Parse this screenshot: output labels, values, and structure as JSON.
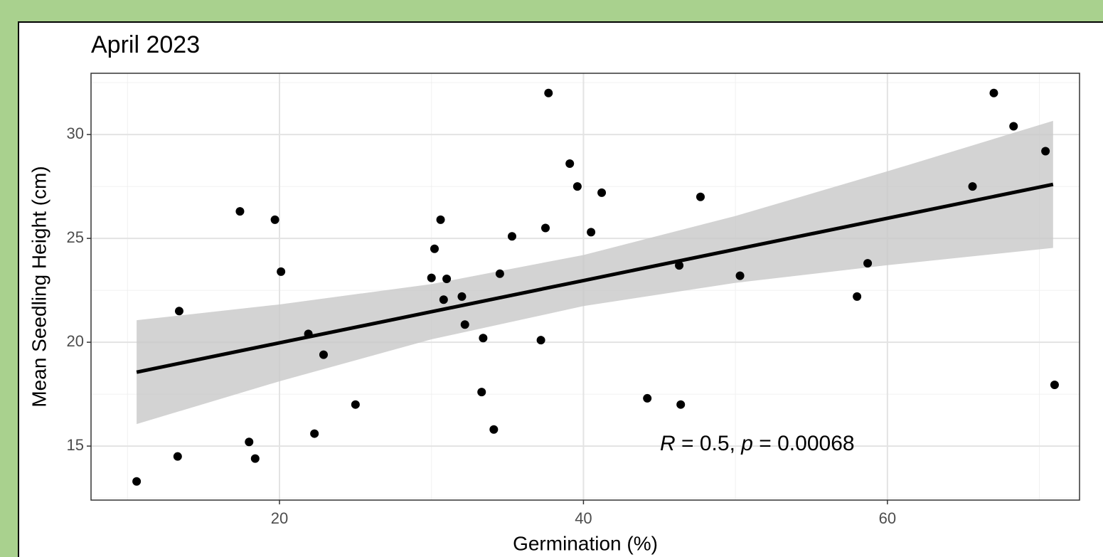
{
  "chart_data": {
    "type": "scatter",
    "title": "April 2023",
    "x_label": "Germination (%)",
    "y_label": "Mean Seedling Height (cm)",
    "xlim": [
      7.6,
      72.64
    ],
    "ylim": [
      12.4,
      32.95
    ],
    "xticks": [
      20,
      40,
      60
    ],
    "yticks": [
      15,
      20,
      25,
      30
    ],
    "x_minor_grid": [
      10,
      30,
      50,
      70
    ],
    "y_minor_grid": [
      12.5,
      17.5,
      22.5,
      27.5,
      32.5
    ],
    "grid": true,
    "point_color": "#000000",
    "x": [
      10.6,
      13.3,
      13.4,
      17.4,
      18.0,
      18.4,
      19.7,
      20.1,
      21.9,
      22.3,
      22.9,
      25.0,
      30.0,
      30.2,
      30.6,
      30.8,
      31.0,
      32.0,
      32.2,
      33.3,
      33.4,
      34.1,
      34.5,
      35.3,
      37.2,
      37.5,
      37.7,
      39.1,
      39.6,
      40.5,
      41.2,
      44.2,
      46.3,
      46.4,
      47.7,
      50.3,
      58.0,
      58.7,
      65.6,
      67.0,
      68.3,
      70.4,
      71.0
    ],
    "y": [
      13.3,
      14.5,
      21.5,
      26.3,
      15.2,
      14.4,
      25.9,
      23.4,
      20.4,
      15.6,
      19.4,
      17.0,
      23.1,
      24.5,
      25.9,
      22.05,
      23.05,
      22.2,
      20.85,
      17.6,
      20.2,
      15.8,
      23.3,
      25.1,
      20.1,
      25.5,
      32.0,
      28.6,
      27.5,
      25.3,
      27.2,
      17.3,
      23.7,
      17.0,
      27.0,
      23.2,
      22.2,
      23.8,
      27.5,
      32.0,
      30.4,
      29.2,
      17.95
    ],
    "fit": {
      "color": "#000000",
      "band_color": "#c8c8c8",
      "x": [
        10.6,
        20,
        30,
        40,
        50,
        60,
        70.9
      ],
      "y": [
        18.56,
        19.97,
        21.47,
        22.97,
        24.47,
        25.97,
        27.6
      ],
      "lower": [
        16.06,
        18.12,
        20.14,
        21.74,
        22.86,
        23.71,
        24.54
      ],
      "upper": [
        21.06,
        21.82,
        22.8,
        24.2,
        26.08,
        28.23,
        30.66
      ]
    },
    "annotation": [
      {
        "text": "R",
        "italic": true
      },
      {
        "text": " = 0.5, ",
        "italic": false
      },
      {
        "text": "p",
        "italic": true
      },
      {
        "text": " = 0.00068",
        "italic": false
      }
    ]
  }
}
